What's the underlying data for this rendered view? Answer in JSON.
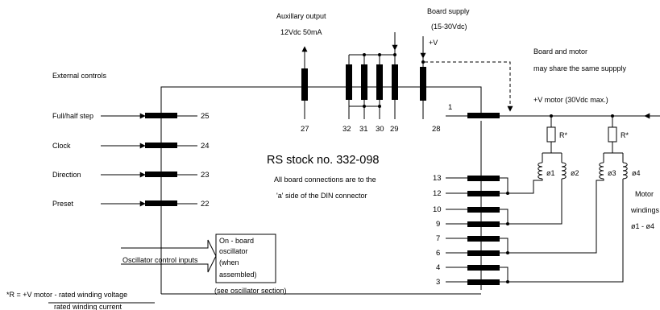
{
  "labels": {
    "aux_output_1": "Auxillary output",
    "aux_output_2": "12Vdc 50mA",
    "board_supply_1": "Board supply",
    "board_supply_2": "(15-30Vdc)",
    "plus_v": "+V",
    "share_1": "Board and motor",
    "share_2": "may share the same suppply",
    "external_controls": "External controls",
    "motor_supply": "+V motor (30Vdc max.)",
    "full_half_step": "Full/half step",
    "clock": "Clock",
    "direction": "Direction",
    "preset": "Preset",
    "stock_no": "RS stock no. 332-098",
    "connections_1": "All board connections are to the",
    "connections_2": "'a' side of  the DIN connector",
    "osc_control_inputs": "Oscillator control inputs",
    "osc_box_1": "On - board",
    "osc_box_2": "oscillator",
    "osc_box_3": "(when",
    "osc_box_4": "assembled)",
    "see_osc": "(see oscillator section)",
    "r_formula_num": "*R = +V motor - rated winding voltage",
    "r_formula_den": "rated winding current",
    "r_star_1": "R*",
    "r_star_2": "R*",
    "phase_1": "ø1",
    "phase_2": "ø2",
    "phase_3": "ø3",
    "phase_4": "ø4",
    "motor_1": "Motor",
    "motor_2": "windings",
    "motor_3": "ø1 - ø4"
  },
  "pins": {
    "p25": "25",
    "p24": "24",
    "p23": "23",
    "p22": "22",
    "p27": "27",
    "p32": "32",
    "p31": "31",
    "p30": "30",
    "p29": "29",
    "p28": "28",
    "p1": "1",
    "p13": "13",
    "p12": "12",
    "p10": "10",
    "p9": "9",
    "p7": "7",
    "p6": "6",
    "p4": "4",
    "p3": "3"
  }
}
